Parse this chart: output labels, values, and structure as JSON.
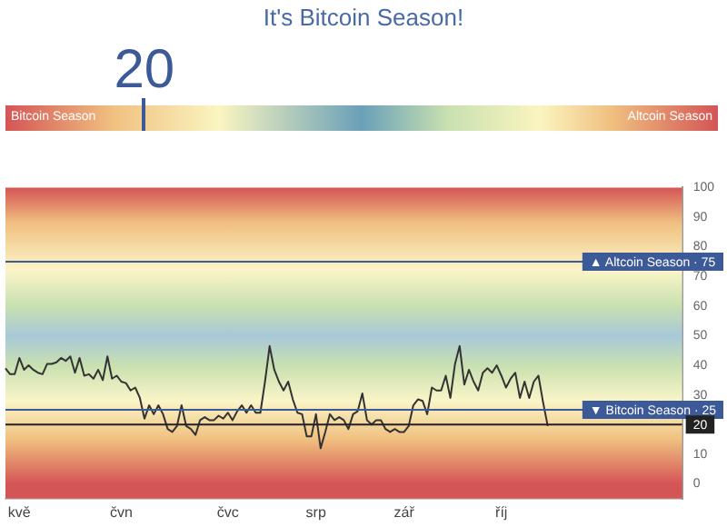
{
  "chart_data": {
    "type": "line",
    "title": "It's Bitcoin Season!",
    "annotations": [
      "20",
      "Bitcoin Season",
      "Altcoin Season"
    ],
    "categories": [
      null,
      null,
      null,
      "kvě",
      null,
      null,
      null,
      null,
      null,
      null,
      null,
      null,
      null,
      null,
      null,
      null,
      null,
      null,
      null,
      null,
      null,
      null,
      null,
      null,
      null,
      "čvn",
      null,
      null,
      null,
      null,
      null,
      null,
      null,
      null,
      null,
      null,
      null,
      null,
      null,
      null,
      null,
      null,
      null,
      null,
      null,
      null,
      null,
      null,
      "čvc",
      null,
      null,
      null,
      null,
      null,
      null,
      null,
      null,
      null,
      null,
      null,
      null,
      null,
      null,
      null,
      null,
      null,
      null,
      "srp",
      null,
      null,
      null,
      null,
      null,
      null,
      null,
      null,
      null,
      null,
      null,
      null,
      null,
      null,
      null,
      null,
      null,
      null,
      "zář",
      null,
      null,
      null,
      null,
      null,
      null,
      null,
      null,
      null,
      null,
      null,
      null,
      null,
      null,
      null,
      null,
      null,
      null,
      null,
      null,
      "říj",
      null,
      null,
      null,
      null,
      null,
      null,
      null,
      null,
      null,
      null,
      null,
      null,
      null,
      null,
      null,
      null,
      null,
      null,
      null,
      null,
      null,
      null,
      null,
      null,
      null,
      null,
      null,
      null,
      null,
      null,
      null,
      null,
      null,
      null,
      null,
      null,
      null,
      null,
      null
    ],
    "series": [
      {
        "color": "#333333",
        "values": [
          39,
          37,
          37,
          42.5,
          38.5,
          40,
          38.5,
          37.5,
          37,
          40.5,
          40.5,
          41,
          42.5,
          41.5,
          43,
          37.5,
          42.5,
          36.5,
          37,
          35.5,
          38.5,
          35,
          43,
          35.5,
          36.5,
          34.5,
          34,
          31.5,
          32.5,
          29,
          22,
          26.5,
          23.5,
          26.5,
          23.5,
          18.5,
          17.5,
          19.5,
          26.5,
          19.5,
          18.5,
          16.5,
          21.5,
          22.5,
          21.5,
          21.5,
          23,
          22,
          24,
          21.5,
          24.5,
          26.5,
          24,
          26.5,
          24,
          24,
          34.5,
          46.5,
          38.5,
          34.5,
          31.5,
          34.5,
          28.5,
          24,
          23.5,
          16,
          16,
          23.5,
          12,
          17.5,
          23.5,
          21.5,
          22.5,
          21.5,
          18.5,
          23.5,
          24.5,
          30.5,
          21.5,
          20,
          21.5,
          21.5,
          18.5,
          17.5,
          18.5,
          17.5,
          17.5,
          19.5,
          26.5,
          28.5,
          28,
          23.5,
          32.5,
          31.5,
          31.5,
          36.5,
          29,
          40.5,
          46.5,
          33.5,
          38.5,
          34.5,
          31.5,
          37.5,
          39,
          37.5,
          40,
          36.5,
          32.5,
          35.5,
          37.5,
          29,
          34.5,
          29,
          34.5,
          36.5,
          27.5,
          19.5,
          null,
          null,
          null,
          null,
          null,
          null,
          null,
          null,
          null,
          null,
          null,
          null,
          null,
          null,
          null,
          null,
          null,
          null,
          null,
          null,
          null,
          null,
          null,
          null,
          null,
          null,
          null,
          null,
          null
        ]
      }
    ],
    "ylim": [
      -5,
      100
    ],
    "yticks": [
      0,
      10,
      20,
      30,
      40,
      50,
      60,
      70,
      80,
      90,
      100
    ],
    "ref_lines": [
      {
        "axis": "y",
        "value": 75,
        "label": "▲ Altcoin Season · 75",
        "color": "#3d5a98"
      },
      {
        "axis": "y",
        "value": 25,
        "label": "▼ Bitcoin Season · 25",
        "color": "#3d5a98"
      },
      {
        "axis": "y",
        "value": 20,
        "color": "#222222"
      }
    ],
    "grid": false,
    "legend": false,
    "marker": "none",
    "line_style": "solid"
  }
}
